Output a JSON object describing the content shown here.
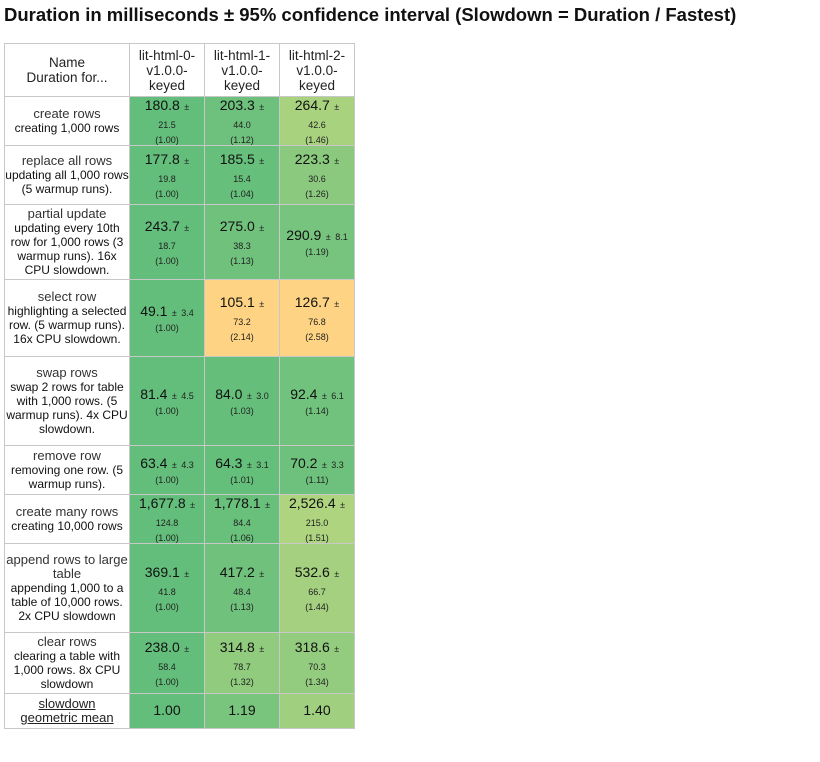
{
  "title": "Duration in milliseconds ± 95% confidence interval (Slowdown = Duration / Fastest)",
  "header": {
    "name_label": "Name",
    "duration_label": "Duration for..."
  },
  "frameworks": [
    {
      "line1": "lit-html-0-",
      "line2": "v1.0.0-",
      "line3": "keyed"
    },
    {
      "line1": "lit-html-1-",
      "line2": "v1.0.0-",
      "line3": "keyed"
    },
    {
      "line1": "lit-html-2-",
      "line2": "v1.0.0-",
      "line3": "keyed"
    }
  ],
  "colors": {
    "best": "#63be7b",
    "mid": "#8dc97a",
    "light": "#a9d27f",
    "warn": "#fed383"
  },
  "rows": [
    {
      "name": "create rows",
      "desc": "creating 1,000 rows",
      "cells": [
        {
          "mean": "180.8",
          "pm": "±",
          "ci": "21.5",
          "factor": "(1.00)",
          "color": "#63be7b",
          "inline": false
        },
        {
          "mean": "203.3",
          "pm": "±",
          "ci": "44.0",
          "factor": "(1.12)",
          "color": "#6dc17c",
          "inline": false
        },
        {
          "mean": "264.7",
          "pm": "±",
          "ci": "42.6",
          "factor": "(1.46)",
          "color": "#a9d27f",
          "inline": false
        }
      ]
    },
    {
      "name": "replace all rows",
      "desc": "updating all 1,000 rows (5 warmup runs).",
      "cells": [
        {
          "mean": "177.8",
          "pm": "±",
          "ci": "19.8",
          "factor": "(1.00)",
          "color": "#63be7b",
          "inline": false
        },
        {
          "mean": "185.5",
          "pm": "±",
          "ci": "15.4",
          "factor": "(1.04)",
          "color": "#66bf7b",
          "inline": false
        },
        {
          "mean": "223.3",
          "pm": "±",
          "ci": "30.6",
          "factor": "(1.26)",
          "color": "#8ac97e",
          "inline": false
        }
      ]
    },
    {
      "name": "partial update",
      "desc": "updating every 10th row for 1,000 rows (3 warmup runs). 16x CPU slowdown.",
      "cells": [
        {
          "mean": "243.7",
          "pm": "±",
          "ci": "18.7",
          "factor": "(1.00)",
          "color": "#63be7b",
          "inline": false
        },
        {
          "mean": "275.0",
          "pm": "±",
          "ci": "38.3",
          "factor": "(1.13)",
          "color": "#6fc17c",
          "inline": false
        },
        {
          "mean": "290.9",
          "pm": "±",
          "ci": "8.1",
          "factor": "(1.19)",
          "color": "#76c47d",
          "inline": true
        }
      ]
    },
    {
      "name": "select row",
      "desc": "highlighting a selected row. (5 warmup runs). 16x CPU slowdown.",
      "cells": [
        {
          "mean": "49.1",
          "pm": "±",
          "ci": "3.4",
          "factor": "(1.00)",
          "color": "#63be7b",
          "inline": true
        },
        {
          "mean": "105.1",
          "pm": "±",
          "ci": "73.2",
          "factor": "(2.14)",
          "color": "#fed383",
          "inline": false
        },
        {
          "mean": "126.7",
          "pm": "±",
          "ci": "76.8",
          "factor": "(2.58)",
          "color": "#fed383",
          "inline": false
        }
      ]
    },
    {
      "name": "swap rows",
      "desc": "swap 2 rows for table with 1,000 rows. (5 warmup runs). 4x CPU slowdown.",
      "cells": [
        {
          "mean": "81.4",
          "pm": "±",
          "ci": "4.5",
          "factor": "(1.00)",
          "color": "#63be7b",
          "inline": true
        },
        {
          "mean": "84.0",
          "pm": "±",
          "ci": "3.0",
          "factor": "(1.03)",
          "color": "#65bf7b",
          "inline": true
        },
        {
          "mean": "92.4",
          "pm": "±",
          "ci": "6.1",
          "factor": "(1.14)",
          "color": "#70c27c",
          "inline": true
        }
      ]
    },
    {
      "name": "remove row",
      "desc": "removing one row. (5 warmup runs).",
      "cells": [
        {
          "mean": "63.4",
          "pm": "±",
          "ci": "4.3",
          "factor": "(1.00)",
          "color": "#63be7b",
          "inline": true
        },
        {
          "mean": "64.3",
          "pm": "±",
          "ci": "3.1",
          "factor": "(1.01)",
          "color": "#64bf7b",
          "inline": true
        },
        {
          "mean": "70.2",
          "pm": "±",
          "ci": "3.3",
          "factor": "(1.11)",
          "color": "#6dc17c",
          "inline": true
        }
      ]
    },
    {
      "name": "create many rows",
      "desc": "creating 10,000 rows",
      "cells": [
        {
          "mean": "1,677.8",
          "pm": "±",
          "ci": "124.8",
          "factor": "(1.00)",
          "color": "#63be7b",
          "inline": false
        },
        {
          "mean": "1,778.1",
          "pm": "±",
          "ci": "84.4",
          "factor": "(1.06)",
          "color": "#68c07b",
          "inline": false
        },
        {
          "mean": "2,526.4",
          "pm": "±",
          "ci": "215.0",
          "factor": "(1.51)",
          "color": "#aed480",
          "inline": false
        }
      ]
    },
    {
      "name": "append rows to large table",
      "desc": "appending 1,000 to a table of 10,000 rows. 2x CPU slowdown",
      "cells": [
        {
          "mean": "369.1",
          "pm": "±",
          "ci": "41.8",
          "factor": "(1.00)",
          "color": "#63be7b",
          "inline": false
        },
        {
          "mean": "417.2",
          "pm": "±",
          "ci": "48.4",
          "factor": "(1.13)",
          "color": "#6fc17c",
          "inline": false
        },
        {
          "mean": "532.6",
          "pm": "±",
          "ci": "66.7",
          "factor": "(1.44)",
          "color": "#a4d07f",
          "inline": false
        }
      ]
    },
    {
      "name": "clear rows",
      "desc": "clearing a table with 1,000 rows. 8x CPU slowdown",
      "cells": [
        {
          "mean": "238.0",
          "pm": "±",
          "ci": "58.4",
          "factor": "(1.00)",
          "color": "#63be7b",
          "inline": false
        },
        {
          "mean": "314.8",
          "pm": "±",
          "ci": "78.7",
          "factor": "(1.32)",
          "color": "#90cb7e",
          "inline": false
        },
        {
          "mean": "318.6",
          "pm": "±",
          "ci": "70.3",
          "factor": "(1.34)",
          "color": "#93cc7e",
          "inline": false
        }
      ]
    }
  ],
  "geomean": {
    "label_line1": "slowdown",
    "label_line2": "geometric mean",
    "values": [
      {
        "value": "1.00",
        "color": "#63be7b"
      },
      {
        "value": "1.19",
        "color": "#7ac57d"
      },
      {
        "value": "1.40",
        "color": "#9fcf7f"
      }
    ]
  }
}
